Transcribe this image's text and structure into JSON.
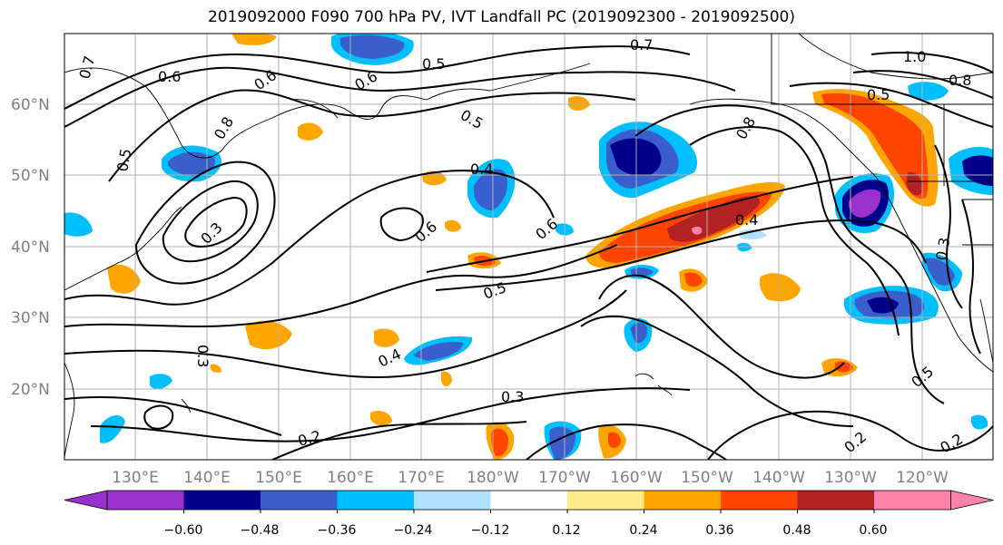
{
  "title": "2019092000 F090 700 hPa PV, IVT Landfall PC (2019092300 - 2019092500)",
  "map": {
    "lat_labels": [
      "60°N",
      "50°N",
      "40°N",
      "30°N",
      "20°N"
    ],
    "lon_labels": [
      "130°E",
      "140°E",
      "150°E",
      "160°E",
      "170°E",
      "180°W",
      "170°W",
      "160°W",
      "150°W",
      "140°W",
      "130°W",
      "120°W"
    ],
    "contour_labels": [
      "0.7",
      "0.6",
      "0.5",
      "0.7",
      "0.8",
      "1.0",
      "0.8",
      "0.5",
      "0.6",
      "0.5",
      "0.5",
      "0.8",
      "0.6",
      "0.4",
      "0.6",
      "0.4",
      "0.6",
      "0.5",
      "0.4",
      "0.3",
      "0.3",
      "0.2",
      "0.2",
      "0.2",
      "0.3",
      "0.5",
      "0.3"
    ]
  },
  "colorbar": {
    "colors": [
      "#9932cc",
      "#00008b",
      "#3a5fcd",
      "#00bfff",
      "#b0e2ff",
      "#ffffff",
      "#ffec8b",
      "#ffa500",
      "#ff4500",
      "#b22222",
      "#ff82ab"
    ],
    "tick_labels": [
      "−0.60",
      "−0.48",
      "−0.36",
      "−0.24",
      "−0.12",
      "0.12",
      "0.24",
      "0.36",
      "0.48",
      "0.60"
    ]
  }
}
